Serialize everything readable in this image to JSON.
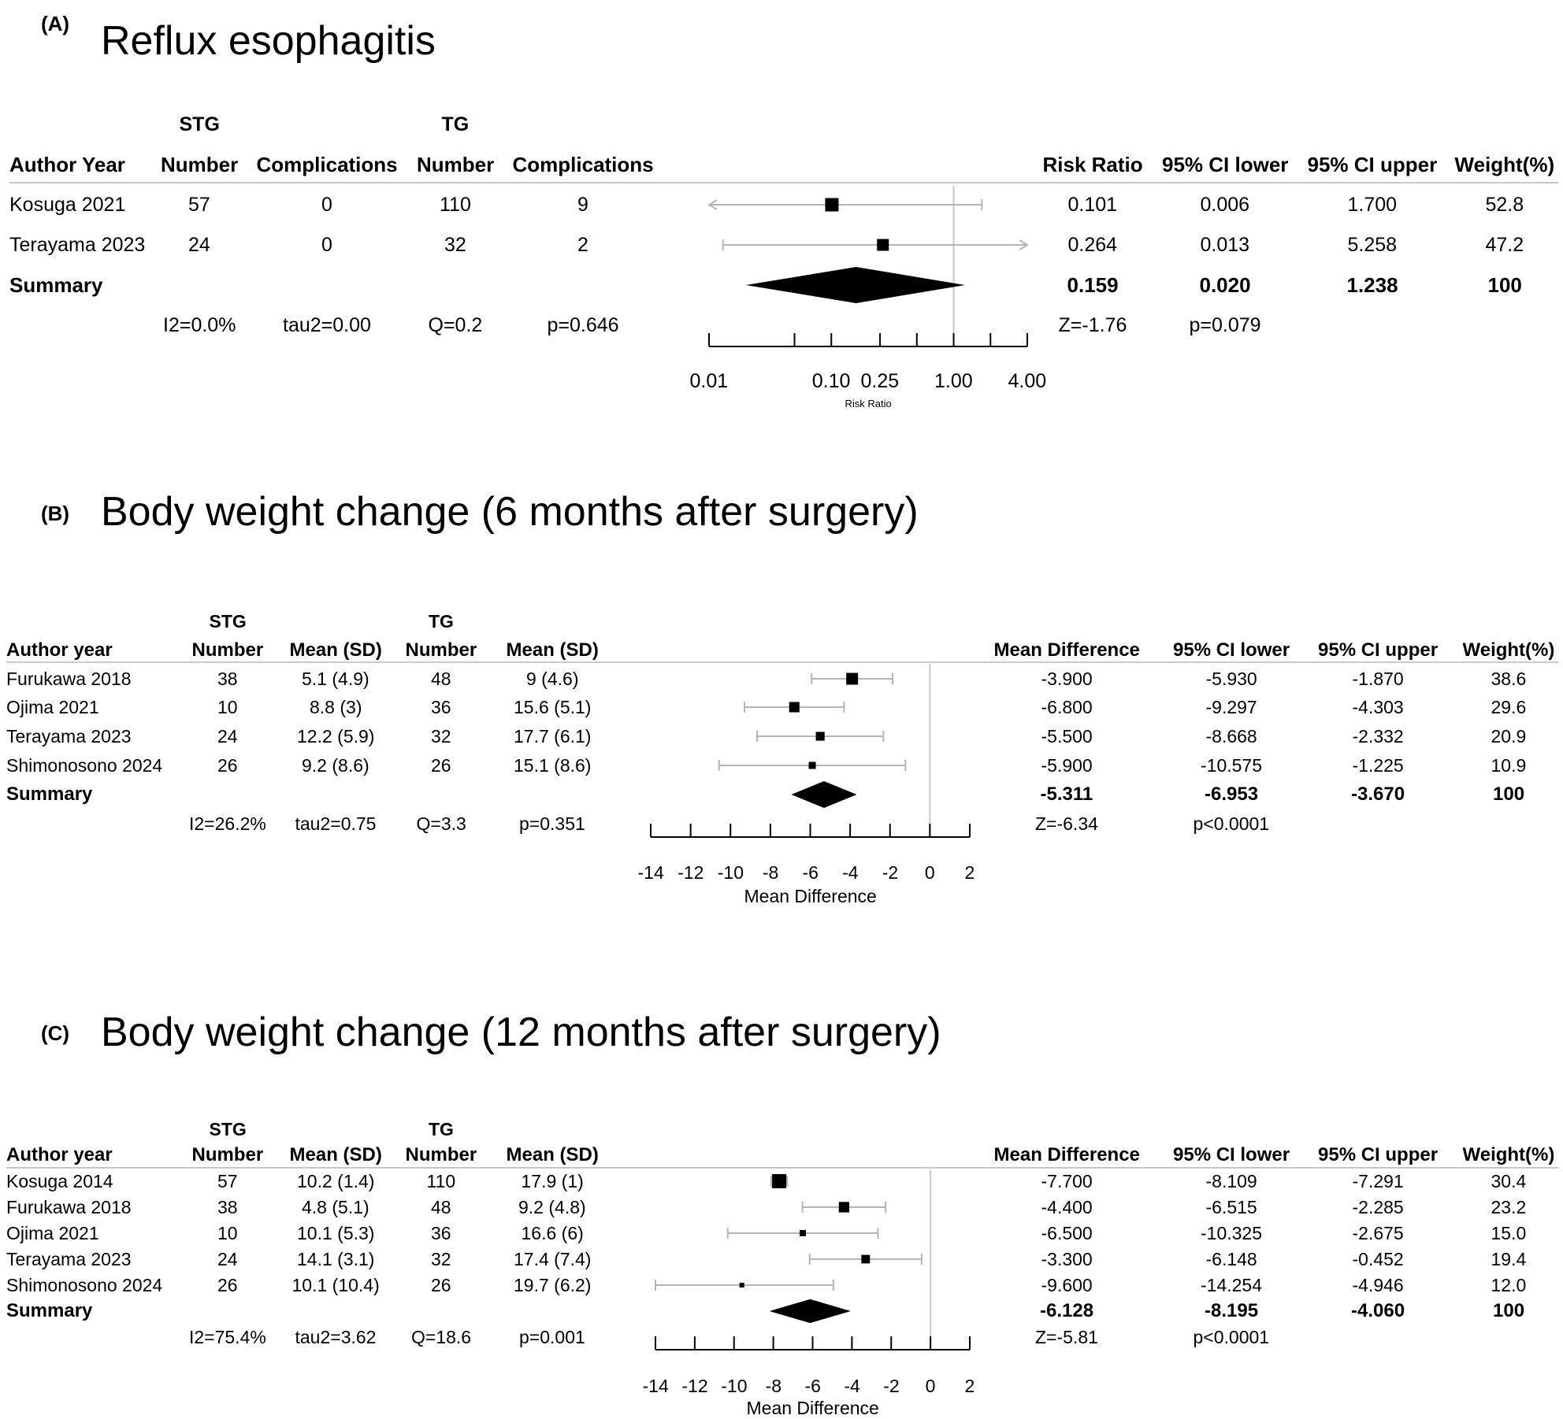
{
  "chart_data": [
    {
      "type": "forest",
      "label": "(A)",
      "title": "Reflux esophagitis",
      "group_headers": [
        "STG",
        "TG"
      ],
      "columns": [
        "Author Year",
        "Number",
        "Complications",
        "Number",
        "Complications"
      ],
      "stat_columns": [
        "Risk Ratio",
        "95% CI lower",
        "95% CI upper",
        "Weight(%)"
      ],
      "studies": [
        {
          "name": "Kosuga 2021",
          "stg_n": "57",
          "stg_v": "0",
          "tg_n": "110",
          "tg_v": "9",
          "est": 0.101,
          "lo": 0.006,
          "hi": 1.7,
          "est_t": "0.101",
          "lo_t": "0.006",
          "hi_t": "1.700",
          "w": "52.8",
          "arrow_lo": true,
          "arrow_hi": false
        },
        {
          "name": "Terayama 2023",
          "stg_n": "24",
          "stg_v": "0",
          "tg_n": "32",
          "tg_v": "2",
          "est": 0.264,
          "lo": 0.013,
          "hi": 5.258,
          "est_t": "0.264",
          "lo_t": "0.013",
          "hi_t": "5.258",
          "w": "47.2",
          "arrow_lo": false,
          "arrow_hi": true
        }
      ],
      "summary": {
        "label": "Summary",
        "est": 0.159,
        "lo": 0.02,
        "hi": 1.238,
        "est_t": "0.159",
        "lo_t": "0.020",
        "hi_t": "1.238",
        "w": "100"
      },
      "hetero": [
        "I2=0.0%",
        "tau2=0.00",
        "Q=0.2",
        "p=0.646"
      ],
      "overall": [
        "Z=-1.76",
        "p=0.079"
      ],
      "axis": {
        "scale": "log",
        "ticks": [
          0.01,
          0.1,
          0.25,
          1,
          4
        ],
        "tick_labels": [
          "0.01",
          "0.10",
          "0.25",
          "1.00",
          "4.00"
        ],
        "minor_ticks": [
          0.05,
          0.5,
          2
        ],
        "xlabel": "Risk Ratio",
        "ref": 1
      }
    },
    {
      "type": "forest",
      "label": "(B)",
      "title": "Body weight change (6 months after surgery)",
      "group_headers": [
        "STG",
        "TG"
      ],
      "columns": [
        "Author year",
        "Number",
        "Mean (SD)",
        "Number",
        "Mean (SD)"
      ],
      "stat_columns": [
        "Mean Difference",
        "95% CI lower",
        "95% CI upper",
        "Weight(%)"
      ],
      "studies": [
        {
          "name": "Furukawa 2018",
          "stg_n": "38",
          "stg_v": "5.1 (4.9)",
          "tg_n": "48",
          "tg_v": "9 (4.6)",
          "est": -3.9,
          "lo": -5.93,
          "hi": -1.87,
          "est_t": "-3.900",
          "lo_t": "-5.930",
          "hi_t": "-1.870",
          "w": "38.6"
        },
        {
          "name": "Ojima 2021",
          "stg_n": "10",
          "stg_v": "8.8 (3)",
          "tg_n": "36",
          "tg_v": "15.6 (5.1)",
          "est": -6.8,
          "lo": -9.297,
          "hi": -4.303,
          "est_t": "-6.800",
          "lo_t": "-9.297",
          "hi_t": "-4.303",
          "w": "29.6"
        },
        {
          "name": "Terayama 2023",
          "stg_n": "24",
          "stg_v": "12.2 (5.9)",
          "tg_n": "32",
          "tg_v": "17.7 (6.1)",
          "est": -5.5,
          "lo": -8.668,
          "hi": -2.332,
          "est_t": "-5.500",
          "lo_t": "-8.668",
          "hi_t": "-2.332",
          "w": "20.9"
        },
        {
          "name": "Shimonosono 2024",
          "stg_n": "26",
          "stg_v": "9.2 (8.6)",
          "tg_n": "26",
          "tg_v": "15.1 (8.6)",
          "est": -5.9,
          "lo": -10.575,
          "hi": -1.225,
          "est_t": "-5.900",
          "lo_t": "-10.575",
          "hi_t": "-1.225",
          "w": "10.9"
        }
      ],
      "summary": {
        "label": "Summary",
        "est": -5.311,
        "lo": -6.953,
        "hi": -3.67,
        "est_t": "-5.311",
        "lo_t": "-6.953",
        "hi_t": "-3.670",
        "w": "100"
      },
      "hetero": [
        "I2=26.2%",
        "tau2=0.75",
        "Q=3.3",
        "p=0.351"
      ],
      "overall": [
        "Z=-6.34",
        "p<0.0001"
      ],
      "axis": {
        "scale": "linear",
        "ticks": [
          -14,
          -12,
          -10,
          -8,
          -6,
          -4,
          -2,
          0,
          2
        ],
        "tick_labels": [
          "-14",
          "-12",
          "-10",
          "-8",
          "-6",
          "-4",
          "-2",
          "0",
          "2"
        ],
        "minor_ticks": [],
        "xlabel": "Mean Difference",
        "ref": 0
      }
    },
    {
      "type": "forest",
      "label": "(C)",
      "title": "Body weight change (12 months after surgery)",
      "group_headers": [
        "STG",
        "TG"
      ],
      "columns": [
        "Author year",
        "Number",
        "Mean (SD)",
        "Number",
        "Mean (SD)"
      ],
      "stat_columns": [
        "Mean Difference",
        "95% CI lower",
        "95% CI upper",
        "Weight(%)"
      ],
      "studies": [
        {
          "name": "Kosuga 2014",
          "stg_n": "57",
          "stg_v": "10.2 (1.4)",
          "tg_n": "110",
          "tg_v": "17.9 (1)",
          "est": -7.7,
          "lo": -8.109,
          "hi": -7.291,
          "est_t": "-7.700",
          "lo_t": "-8.109",
          "hi_t": "-7.291",
          "w": "30.4"
        },
        {
          "name": "Furukawa 2018",
          "stg_n": "38",
          "stg_v": "4.8 (5.1)",
          "tg_n": "48",
          "tg_v": "9.2 (4.8)",
          "est": -4.4,
          "lo": -6.515,
          "hi": -2.285,
          "est_t": "-4.400",
          "lo_t": "-6.515",
          "hi_t": "-2.285",
          "w": "23.2"
        },
        {
          "name": "Ojima 2021",
          "stg_n": "10",
          "stg_v": "10.1 (5.3)",
          "tg_n": "36",
          "tg_v": "16.6 (6)",
          "est": -6.5,
          "lo": -10.325,
          "hi": -2.675,
          "est_t": "-6.500",
          "lo_t": "-10.325",
          "hi_t": "-2.675",
          "w": "15.0"
        },
        {
          "name": "Terayama 2023",
          "stg_n": "24",
          "stg_v": "14.1 (3.1)",
          "tg_n": "32",
          "tg_v": "17.4 (7.4)",
          "est": -3.3,
          "lo": -6.148,
          "hi": -0.452,
          "est_t": "-3.300",
          "lo_t": "-6.148",
          "hi_t": "-0.452",
          "w": "19.4"
        },
        {
          "name": "Shimonosono 2024",
          "stg_n": "26",
          "stg_v": "10.1 (10.4)",
          "tg_n": "26",
          "tg_v": "19.7 (6.2)",
          "est": -9.6,
          "lo": -14.254,
          "hi": -4.946,
          "est_t": "-9.600",
          "lo_t": "-14.254",
          "hi_t": "-4.946",
          "w": "12.0"
        }
      ],
      "summary": {
        "label": "Summary",
        "est": -6.128,
        "lo": -8.195,
        "hi": -4.06,
        "est_t": "-6.128",
        "lo_t": "-8.195",
        "hi_t": "-4.060",
        "w": "100"
      },
      "hetero": [
        "I2=75.4%",
        "tau2=3.62",
        "Q=18.6",
        "p=0.001"
      ],
      "overall": [
        "Z=-5.81",
        "p<0.0001"
      ],
      "axis": {
        "scale": "linear",
        "ticks": [
          -14,
          -12,
          -10,
          -8,
          -6,
          -4,
          -2,
          0,
          2
        ],
        "tick_labels": [
          "-14",
          "-12",
          "-10",
          "-8",
          "-6",
          "-4",
          "-2",
          "0",
          "2"
        ],
        "minor_ticks": [],
        "xlabel": "Mean Difference",
        "ref": 0
      }
    }
  ]
}
